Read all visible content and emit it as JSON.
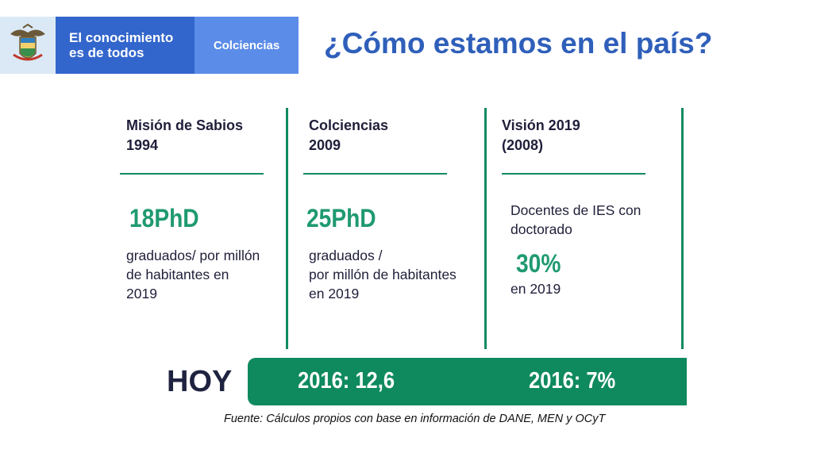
{
  "header": {
    "brand_line": "El conocimiento\nes de todos",
    "entity": "Colciencias",
    "title": "¿Cómo estamos en el país?"
  },
  "columns": [
    {
      "heading": "Misión de Sabios\n1994",
      "value": "18PhD",
      "description": "graduados/ por millón\nde habitantes en\n2019"
    },
    {
      "heading": "Colciencias\n2009",
      "value": "25PhD",
      "description": "graduados /\npor millón de habitantes\nen 2019"
    },
    {
      "heading": "Visión 2019\n(2008)",
      "intro": "Docentes de IES con\ndoctorado",
      "value": "30%",
      "description": "en 2019"
    }
  ],
  "today": {
    "label": "HOY",
    "value_left": "2016:  12,6",
    "value_right": "2016:  7%"
  },
  "source": "Fuente: Cálculos propios con base en información de DANE, MEN y OCyT",
  "colors": {
    "accent_green": "#0f8a5f",
    "value_green": "#1f9a70",
    "title_blue": "#2f5fba",
    "brand_blue": "#3366cc",
    "entity_blue": "#5b8ce8"
  }
}
